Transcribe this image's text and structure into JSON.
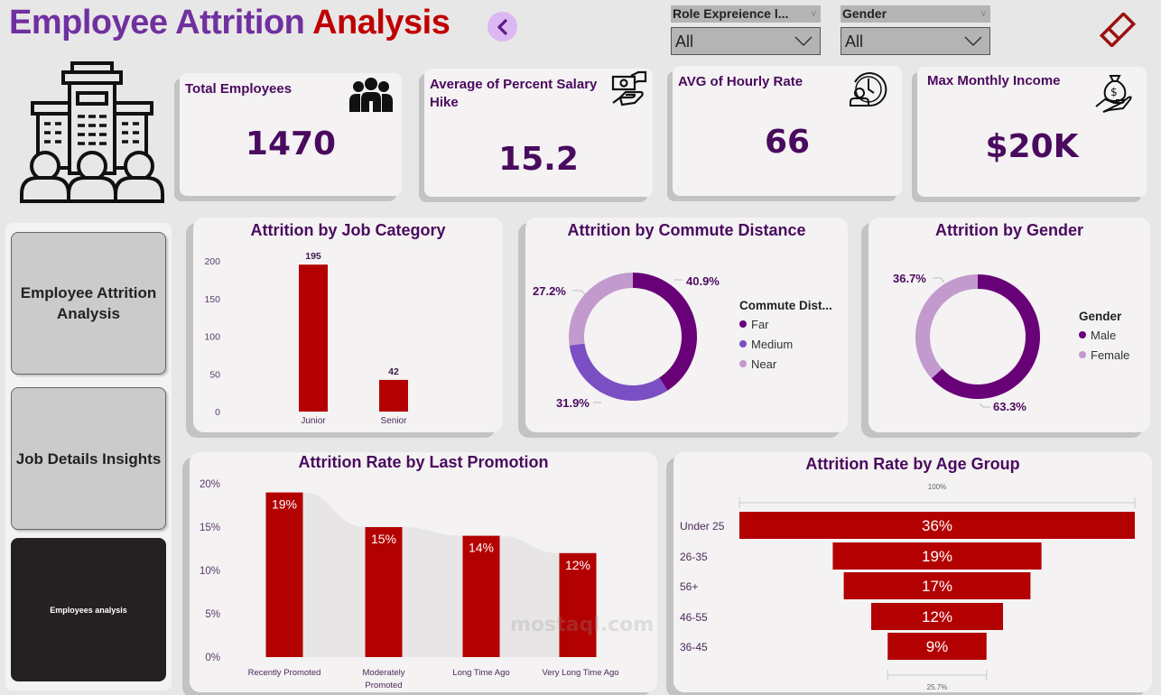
{
  "header": {
    "title_part1": "Employee Attrition",
    "title_part2": "Analysis",
    "back_button": "chevron-left-icon",
    "clear_filters_icon": "eraser-icon"
  },
  "filters": [
    {
      "label": "Role Expreience l...",
      "value": "All"
    },
    {
      "label": "Gender",
      "value": "All"
    }
  ],
  "kpis": [
    {
      "label": "Total Employees",
      "value": "1470",
      "icon": "people-group-icon"
    },
    {
      "label": "Average of Percent Salary Hike",
      "value": "15.2",
      "icon": "money-hand-icon"
    },
    {
      "label": "AVG of Hourly Rate",
      "value": "66",
      "icon": "person-clock-icon"
    },
    {
      "label": "Max Monthly Income",
      "value": "$20K",
      "icon": "money-bag-hand-icon"
    }
  ],
  "nav": [
    {
      "label": "Employee Attrition Analysis",
      "active": false
    },
    {
      "label": "Job Details Insights",
      "active": false
    },
    {
      "label": "Employees analysis",
      "active": true
    }
  ],
  "colors": {
    "bar": "#b30000",
    "far": "#680177",
    "medium": "#7b4fc4",
    "near": "#c39acd",
    "male": "#680177",
    "female": "#c39acd",
    "title_text": "#4a0a5e"
  },
  "watermark": "mostaql.com",
  "chart_data": [
    {
      "id": "job_category",
      "type": "bar",
      "title": "Attrition by Job Category",
      "categories": [
        "Junior",
        "Senior"
      ],
      "values": [
        195,
        42
      ],
      "yticks": [
        "0",
        "50",
        "100",
        "150",
        "200"
      ],
      "ylim": [
        0,
        200
      ],
      "xlabel": "",
      "ylabel": ""
    },
    {
      "id": "commute",
      "type": "pie",
      "title": "Attrition by Commute Distance",
      "legend_title": "Commute Dist...",
      "legend_position": "right",
      "labels": [
        "Far",
        "Medium",
        "Near"
      ],
      "values": [
        40.9,
        31.9,
        27.2
      ],
      "data_labels": [
        "40.9%",
        "31.9%",
        "27.2%"
      ]
    },
    {
      "id": "gender",
      "type": "pie",
      "title": "Attrition by Gender",
      "legend_title": "Gender",
      "legend_position": "right",
      "labels": [
        "Male",
        "Female"
      ],
      "values": [
        63.3,
        36.7
      ],
      "data_labels": [
        "63.3%",
        "36.7%"
      ]
    },
    {
      "id": "promotion",
      "type": "bar",
      "title": "Attrition Rate by Last Promotion",
      "categories": [
        "Recently Promoted",
        "Moderately Promoted",
        "Long Time Ago",
        "Very Long Time Ago"
      ],
      "category_lines": [
        [
          "Recently Promoted"
        ],
        [
          "Moderately",
          "Promoted"
        ],
        [
          "Long Time Ago"
        ],
        [
          "Very Long Time Ago"
        ]
      ],
      "values": [
        19,
        15,
        14,
        12
      ],
      "data_labels": [
        "19%",
        "15%",
        "14%",
        "12%"
      ],
      "yticks": [
        "0%",
        "5%",
        "10%",
        "15%",
        "20%"
      ],
      "ylim": [
        0,
        20
      ]
    },
    {
      "id": "age_group",
      "type": "bar",
      "subtype": "funnel",
      "title": "Attrition Rate by Age Group",
      "categories": [
        "Under 25",
        "26-35",
        "56+",
        "46-55",
        "36-45"
      ],
      "values": [
        36,
        19,
        17,
        12,
        9
      ],
      "data_labels": [
        "36%",
        "19%",
        "17%",
        "12%",
        "9%"
      ],
      "top_annotation": "100%",
      "bottom_annotation": "25.7%"
    }
  ]
}
